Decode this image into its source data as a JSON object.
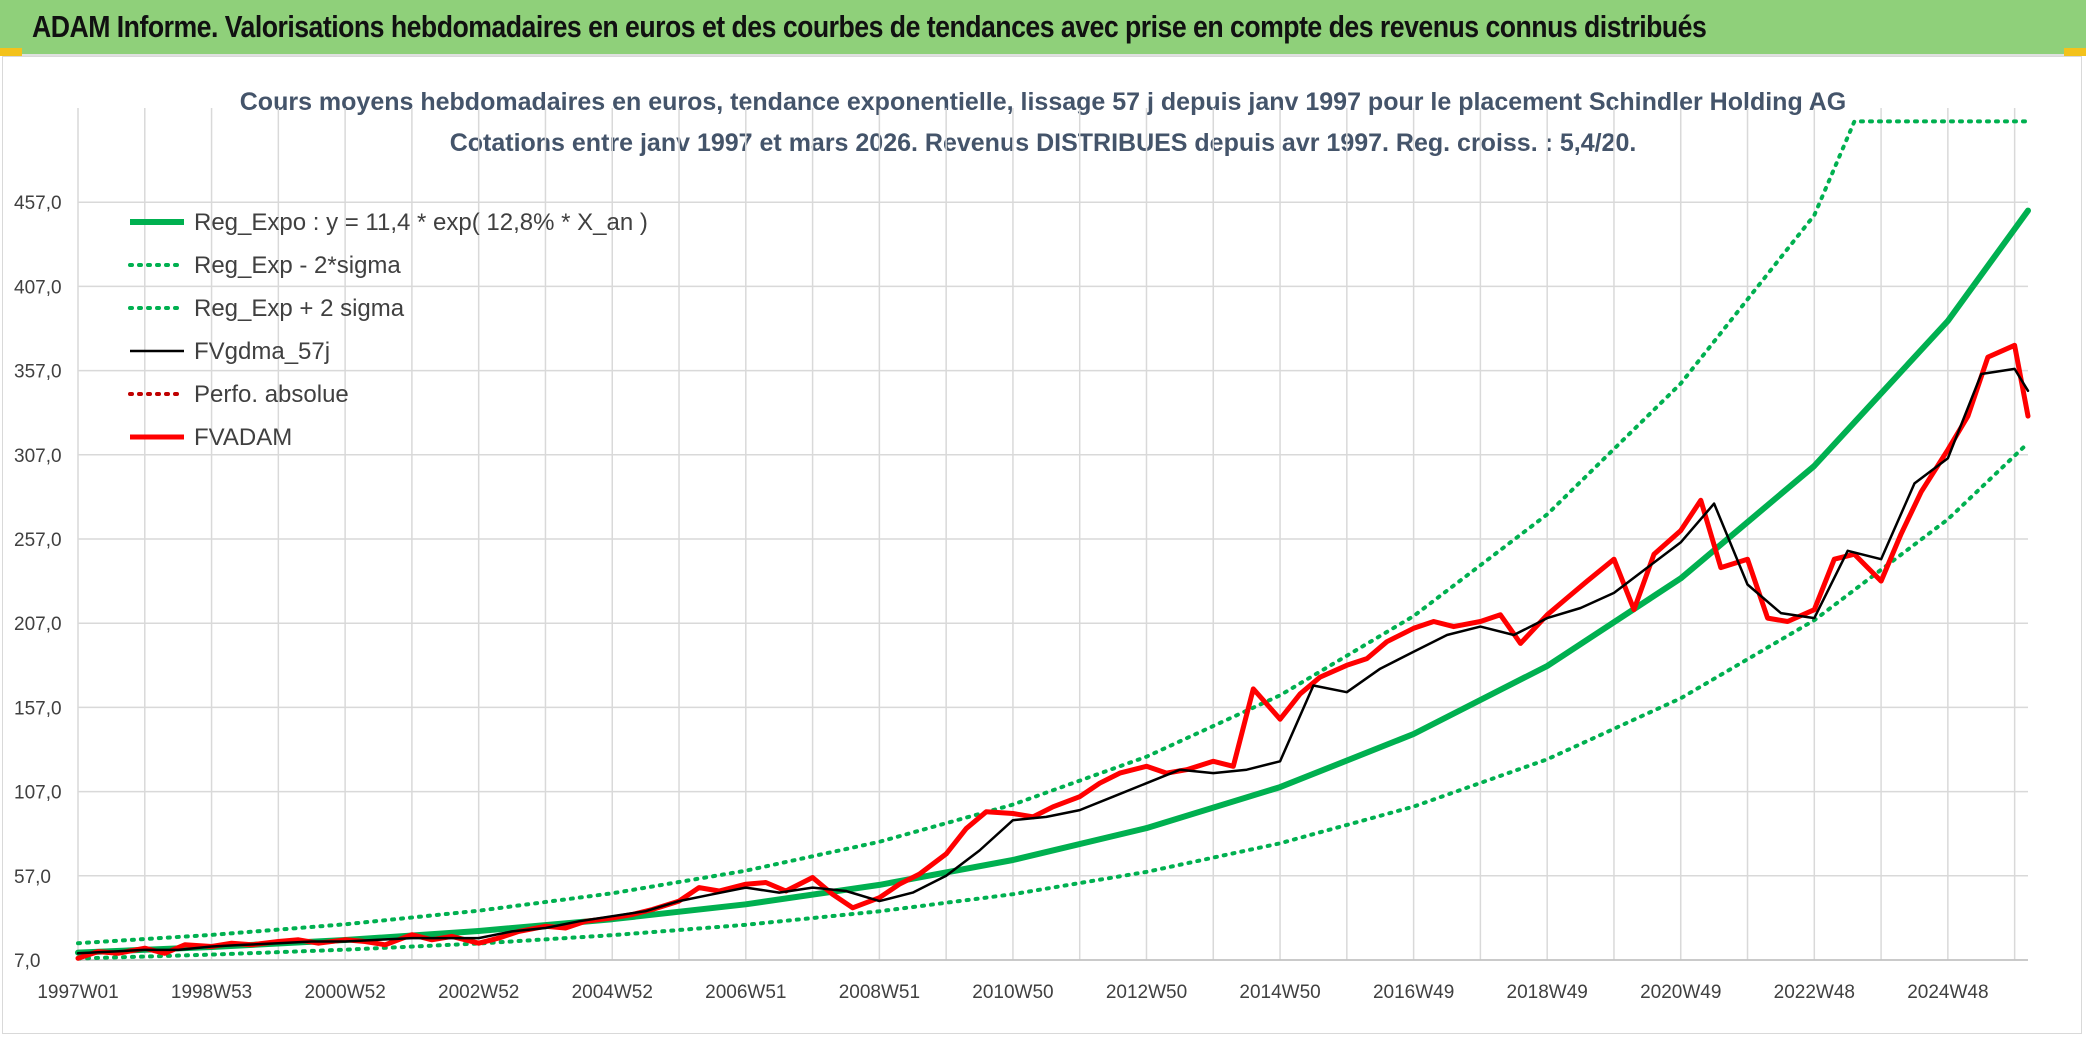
{
  "banner": {
    "title": "ADAM Informe. Valorisations hebdomadaires en euros et des courbes de tendances avec prise en compte des revenus connus distribués"
  },
  "colors": {
    "banner_bg": "#8fd07a",
    "trend": "#00b050",
    "smooth": "#000000",
    "actual": "#ff0000",
    "perf": "#c00000",
    "grid": "#d9d9d9"
  },
  "chart_data": {
    "type": "line",
    "title_line1": "Cours moyens hebdomadaires en euros, tendance exponentielle, lissage 57 j depuis janv 1997 pour le placement Schindler Holding AG",
    "title_line2": "Cotations entre janv 1997 et mars 2026. Revenus DISTRIBUES depuis avr 1997. Reg. croiss. : 5,4/20.",
    "xlabel": "",
    "ylabel": "",
    "x_range": [
      1997.0,
      2026.2
    ],
    "y_range": [
      7,
      507
    ],
    "y_ticks": [
      "7,0",
      "57,0",
      "107,0",
      "157,0",
      "207,0",
      "257,0",
      "307,0",
      "357,0",
      "407,0",
      "457,0"
    ],
    "x_tick_labels": [
      {
        "label": "1997W01",
        "year": 1997.0
      },
      {
        "label": "1998W53",
        "year": 1999.0
      },
      {
        "label": "2000W52",
        "year": 2001.0
      },
      {
        "label": "2002W52",
        "year": 2003.0
      },
      {
        "label": "2004W52",
        "year": 2005.0
      },
      {
        "label": "2006W51",
        "year": 2007.0
      },
      {
        "label": "2008W51",
        "year": 2009.0
      },
      {
        "label": "2010W50",
        "year": 2011.0
      },
      {
        "label": "2012W50",
        "year": 2013.0
      },
      {
        "label": "2014W50",
        "year": 2015.0
      },
      {
        "label": "2016W49",
        "year": 2017.0
      },
      {
        "label": "2018W49",
        "year": 2019.0
      },
      {
        "label": "2020W49",
        "year": 2021.0
      },
      {
        "label": "2022W48",
        "year": 2023.0
      },
      {
        "label": "2024W48",
        "year": 2025.0
      }
    ],
    "grid": true,
    "legend_position": "top-left",
    "series": [
      {
        "name": "Reg_Expo : y = 11,4 * exp( 12,8% *  X_an )",
        "style": "solid-thick",
        "color": "#00b050",
        "x": [
          1997.0,
          1999.0,
          2001.0,
          2003.0,
          2005.0,
          2007.0,
          2009.0,
          2011.0,
          2013.0,
          2015.0,
          2017.0,
          2019.0,
          2021.0,
          2023.0,
          2025.0,
          2026.2
        ],
        "y": [
          11.4,
          14.7,
          18.9,
          24.2,
          31.2,
          40.1,
          51.6,
          66.4,
          85.3,
          109.7,
          141.2,
          181.6,
          233.6,
          300.4,
          386.5,
          452.0
        ]
      },
      {
        "name": "Reg_Exp - 2*sigma",
        "style": "dotted",
        "color": "#00b050",
        "x": [
          1997.0,
          1999.0,
          2001.0,
          2003.0,
          2005.0,
          2007.0,
          2009.0,
          2011.0,
          2013.0,
          2015.0,
          2017.0,
          2019.0,
          2021.0,
          2023.0,
          2025.0,
          2026.2
        ],
        "y": [
          7.9,
          10.2,
          13.1,
          16.8,
          21.7,
          27.9,
          35.9,
          46.1,
          59.3,
          76.3,
          98.1,
          126.2,
          162.4,
          208.8,
          268.7,
          314.0
        ]
      },
      {
        "name": "Reg_Exp + 2 sigma",
        "style": "dotted",
        "color": "#00b050",
        "x": [
          1997.0,
          1999.0,
          2001.0,
          2003.0,
          2005.0,
          2007.0,
          2009.0,
          2011.0,
          2013.0,
          2015.0,
          2017.0,
          2019.0,
          2021.0,
          2023.0,
          2023.6,
          2026.2
        ],
        "y": [
          17.0,
          21.9,
          28.2,
          36.3,
          46.6,
          60.0,
          77.2,
          99.3,
          127.7,
          164.2,
          211.2,
          271.6,
          349.3,
          449.3,
          505.0,
          505.0
        ]
      },
      {
        "name": "FVgdma_57j",
        "style": "solid",
        "color": "#000000",
        "x": [
          1997.0,
          1997.5,
          1998.0,
          1998.5,
          1999.0,
          1999.5,
          2000.0,
          2000.5,
          2001.0,
          2001.5,
          2002.0,
          2002.5,
          2003.0,
          2003.5,
          2004.0,
          2004.5,
          2005.0,
          2005.5,
          2006.0,
          2006.5,
          2007.0,
          2007.5,
          2008.0,
          2008.5,
          2009.0,
          2009.5,
          2010.0,
          2010.5,
          2011.0,
          2011.5,
          2012.0,
          2012.5,
          2013.0,
          2013.5,
          2014.0,
          2014.5,
          2015.0,
          2015.5,
          2016.0,
          2016.5,
          2017.0,
          2017.5,
          2018.0,
          2018.5,
          2019.0,
          2019.5,
          2020.0,
          2020.5,
          2021.0,
          2021.5,
          2022.0,
          2022.5,
          2023.0,
          2023.5,
          2024.0,
          2024.5,
          2025.0,
          2025.5,
          2026.0,
          2026.2
        ],
        "y": [
          11,
          12,
          13,
          13,
          15,
          16,
          17,
          18,
          18,
          19,
          20,
          20,
          20,
          24,
          26,
          30,
          33,
          36,
          42,
          46,
          50,
          47,
          50,
          48,
          42,
          47,
          57,
          72,
          90,
          92,
          96,
          104,
          112,
          120,
          118,
          120,
          125,
          170,
          166,
          180,
          190,
          200,
          205,
          200,
          210,
          216,
          225,
          240,
          255,
          278,
          230,
          213,
          210,
          250,
          245,
          290,
          305,
          355,
          358,
          345
        ]
      },
      {
        "name": "Perfo. absolue",
        "style": "dotted",
        "color": "#c00000",
        "x": [],
        "y": []
      },
      {
        "name": "FVADAM",
        "style": "solid-thick",
        "color": "#ff0000",
        "x": [
          1997.0,
          1997.3,
          1997.6,
          1998.0,
          1998.3,
          1998.6,
          1999.0,
          1999.3,
          1999.6,
          2000.0,
          2000.3,
          2000.6,
          2001.0,
          2001.3,
          2001.6,
          2002.0,
          2002.3,
          2002.6,
          2003.0,
          2003.3,
          2003.6,
          2004.0,
          2004.3,
          2004.6,
          2005.0,
          2005.3,
          2005.6,
          2006.0,
          2006.3,
          2006.6,
          2007.0,
          2007.3,
          2007.6,
          2008.0,
          2008.3,
          2008.6,
          2009.0,
          2009.3,
          2009.6,
          2010.0,
          2010.3,
          2010.6,
          2011.0,
          2011.3,
          2011.6,
          2012.0,
          2012.3,
          2012.6,
          2013.0,
          2013.3,
          2013.6,
          2014.0,
          2014.3,
          2014.6,
          2015.0,
          2015.3,
          2015.6,
          2016.0,
          2016.3,
          2016.6,
          2017.0,
          2017.3,
          2017.6,
          2018.0,
          2018.3,
          2018.6,
          2019.0,
          2019.3,
          2019.6,
          2020.0,
          2020.3,
          2020.6,
          2021.0,
          2021.3,
          2021.6,
          2022.0,
          2022.3,
          2022.6,
          2023.0,
          2023.3,
          2023.6,
          2024.0,
          2024.3,
          2024.6,
          2025.0,
          2025.3,
          2025.6,
          2026.0,
          2026.2
        ],
        "y": [
          8,
          12,
          11,
          14,
          11,
          16,
          15,
          17,
          16,
          18,
          19,
          17,
          19,
          18,
          16,
          22,
          19,
          21,
          17,
          20,
          24,
          27,
          26,
          30,
          32,
          34,
          37,
          42,
          50,
          48,
          52,
          53,
          48,
          56,
          46,
          38,
          44,
          52,
          58,
          70,
          85,
          95,
          94,
          92,
          98,
          104,
          112,
          118,
          122,
          118,
          120,
          125,
          122,
          168,
          150,
          165,
          175,
          182,
          186,
          196,
          204,
          208,
          205,
          208,
          212,
          195,
          212,
          222,
          232,
          245,
          215,
          248,
          262,
          280,
          240,
          245,
          210,
          208,
          215,
          245,
          248,
          232,
          260,
          285,
          310,
          330,
          365,
          372,
          330
        ]
      }
    ]
  }
}
